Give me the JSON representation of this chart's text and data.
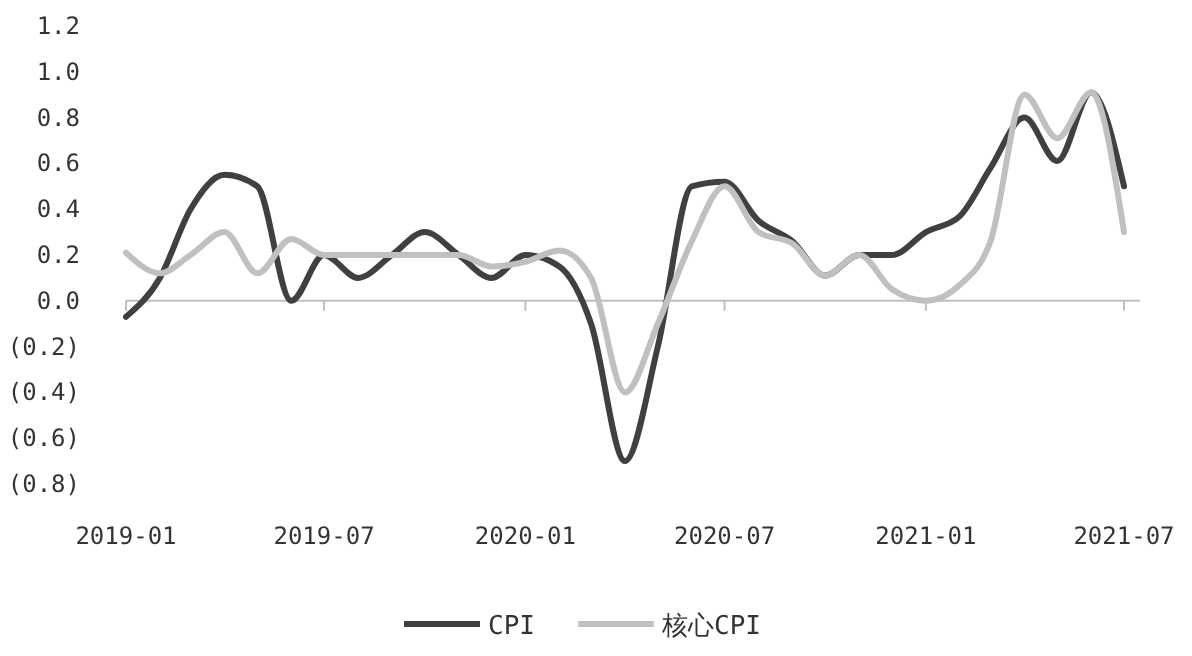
{
  "chart_data": {
    "type": "line",
    "x": [
      "2019-01",
      "2019-02",
      "2019-03",
      "2019-04",
      "2019-05",
      "2019-06",
      "2019-07",
      "2019-08",
      "2019-09",
      "2019-10",
      "2019-11",
      "2019-12",
      "2020-01",
      "2020-02",
      "2020-03",
      "2020-04",
      "2020-05",
      "2020-06",
      "2020-07",
      "2020-08",
      "2020-09",
      "2020-10",
      "2020-11",
      "2020-12",
      "2021-01",
      "2021-02",
      "2021-03",
      "2021-04",
      "2021-05",
      "2021-06",
      "2021-07"
    ],
    "series": [
      {
        "name": "CPI",
        "color": "#404040",
        "values": [
          -0.07,
          0.1,
          0.4,
          0.55,
          0.5,
          0.0,
          0.2,
          0.1,
          0.2,
          0.3,
          0.2,
          0.1,
          0.2,
          0.15,
          -0.1,
          -0.7,
          -0.2,
          0.5,
          0.52,
          0.35,
          0.26,
          0.11,
          0.2,
          0.2,
          0.3,
          0.37,
          0.58,
          0.8,
          0.61,
          0.91,
          0.5
        ]
      },
      {
        "name": "核心CPI",
        "color": "#c0c0c0",
        "values": [
          0.21,
          0.12,
          0.2,
          0.3,
          0.12,
          0.27,
          0.2,
          0.2,
          0.2,
          0.2,
          0.2,
          0.15,
          0.17,
          0.22,
          0.1,
          -0.4,
          -0.1,
          0.26,
          0.5,
          0.3,
          0.25,
          0.11,
          0.2,
          0.05,
          0.0,
          0.07,
          0.26,
          0.9,
          0.71,
          0.91,
          0.3
        ]
      }
    ],
    "xlim": [
      "2019-01",
      "2021-07"
    ],
    "xticks": [
      "2019-01",
      "2019-07",
      "2020-01",
      "2020-07",
      "2021-01",
      "2021-07"
    ],
    "ylim": [
      -0.8,
      1.2
    ],
    "yticks": [
      {
        "value": -0.8,
        "label": "(0.8)"
      },
      {
        "value": -0.6,
        "label": "(0.6)"
      },
      {
        "value": -0.4,
        "label": "(0.4)"
      },
      {
        "value": -0.2,
        "label": "(0.2)"
      },
      {
        "value": 0,
        "label": "0.0"
      },
      {
        "value": 0.2,
        "label": "0.2"
      },
      {
        "value": 0.4,
        "label": "0.4"
      },
      {
        "value": 0.6,
        "label": "0.6"
      },
      {
        "value": 0.8,
        "label": "0.8"
      },
      {
        "value": 1.0,
        "label": "1.0"
      },
      {
        "value": 1.2,
        "label": "1.2"
      }
    ],
    "legend": "bottom",
    "marker": "none",
    "line_style": "solid"
  }
}
